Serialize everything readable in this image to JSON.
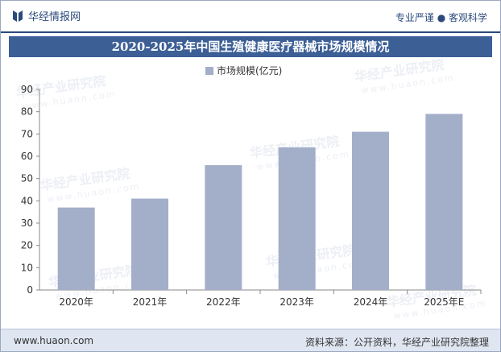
{
  "header": {
    "brand_name": "华经情报网",
    "slogan": "专业严谨 ● 客观科学",
    "brand_color": "#2b4a7c"
  },
  "chart_data": {
    "type": "bar",
    "title": "2020-2025年中国生殖健康医疗器械市场规模情况",
    "categories": [
      "2020年",
      "2021年",
      "2022年",
      "2023年",
      "2024年",
      "2025年E"
    ],
    "series": [
      {
        "name": "市场规模(亿元)",
        "values": [
          37,
          41,
          56,
          64,
          71,
          79
        ],
        "color": "#a3aec9"
      }
    ],
    "ylim": [
      0,
      90
    ],
    "yticks": [
      "0",
      "10",
      "20",
      "30",
      "40",
      "50",
      "60",
      "70",
      "80",
      "90"
    ],
    "xlabel": "",
    "ylabel": "",
    "grid": false,
    "legend": "top-center"
  },
  "watermark": {
    "text": "华经产业研究院",
    "url_text": "www.huaon.com"
  },
  "footer": {
    "url": "www.huaon.com",
    "source": "资料来源：公开资料，华经产业研究院整理"
  }
}
